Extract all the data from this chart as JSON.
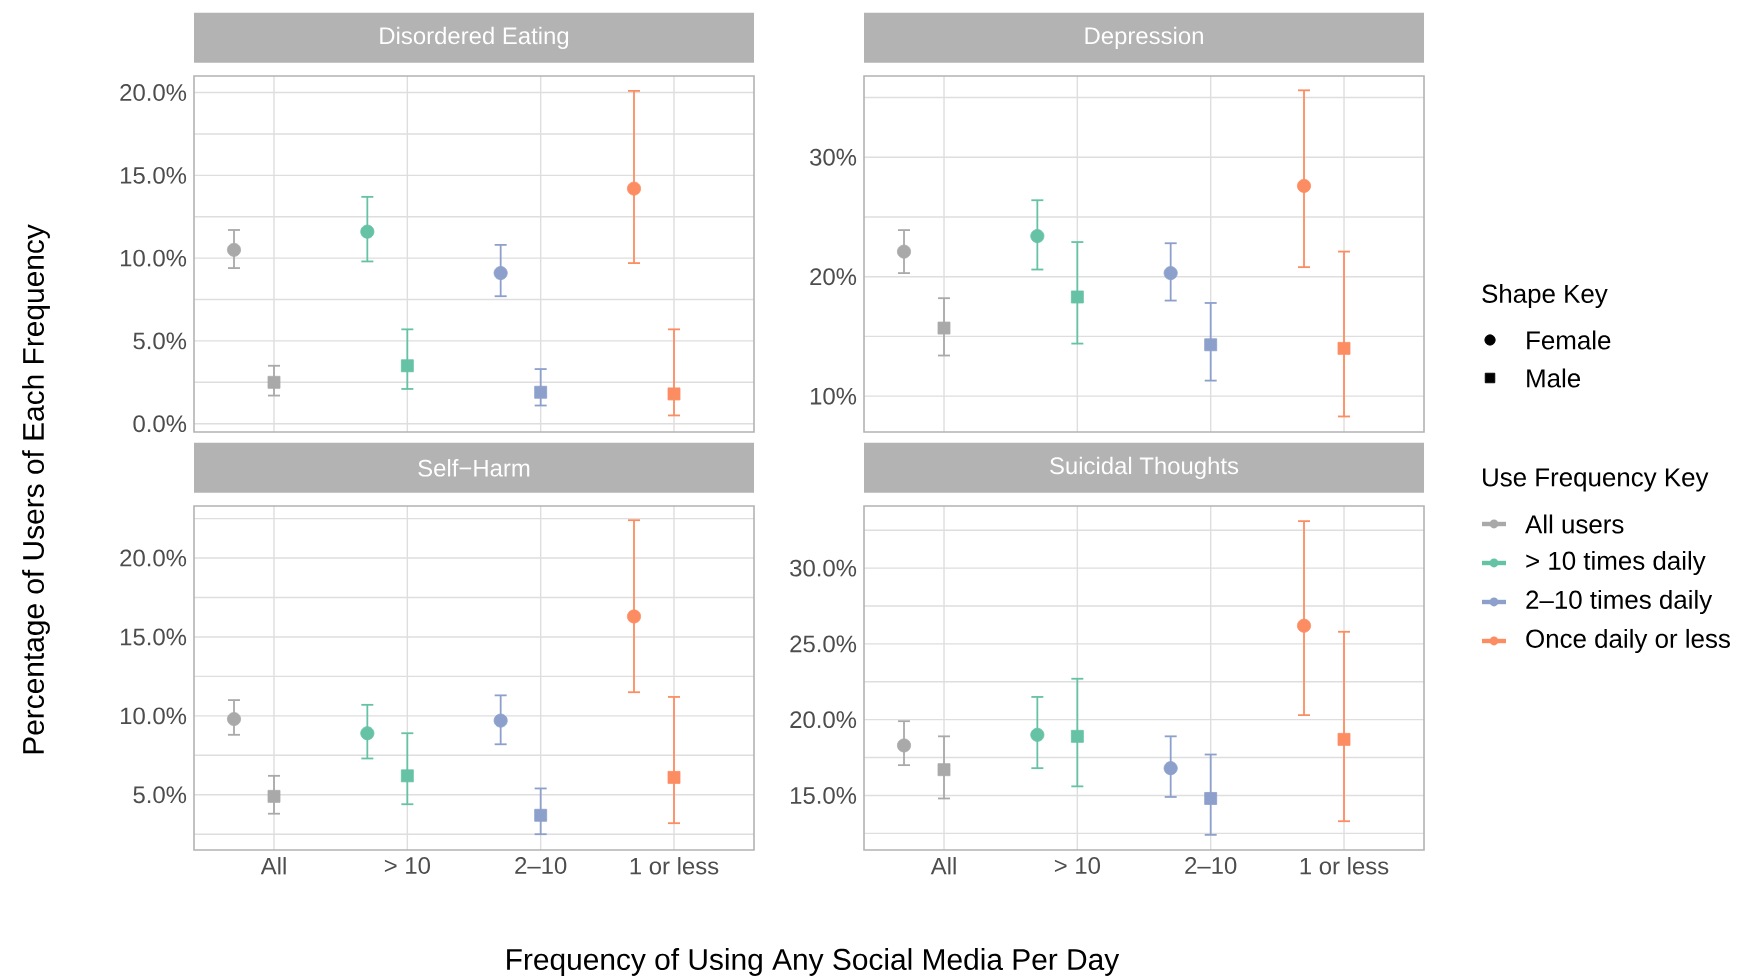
{
  "chart_data": [
    {
      "type": "scatter",
      "title": "Disordered Eating",
      "ylabel": "Percentage of Users of Each Frequency",
      "legend": "right",
      "legend_title": "Shape Key",
      "grid": true,
      "tick_labels": "y",
      "categories": [
        null,
        null,
        null,
        null
      ],
      "ylim": [
        -0.5,
        21.0
      ],
      "yticks": [
        {
          "value": 0,
          "label": "0.0%"
        },
        {
          "value": 2.5,
          "label": null
        },
        {
          "value": 5,
          "label": "5.0%"
        },
        {
          "value": 7.5,
          "label": null
        },
        {
          "value": 10,
          "label": "10.0%"
        },
        {
          "value": 12.5,
          "label": null
        },
        {
          "value": 15,
          "label": "15.0%"
        },
        {
          "value": 17.5,
          "label": null
        },
        {
          "value": 20,
          "label": "20.0%"
        }
      ],
      "series": [
        {
          "name": "Female",
          "marker": "circle",
          "colors": [
            "#a9a9a9",
            "#66c2a5",
            "#8da0cb",
            "#fc8d62"
          ],
          "values": [
            10.5,
            11.6,
            9.1,
            14.2
          ],
          "errors": [
            [
              9.4,
              11.7
            ],
            [
              9.8,
              13.7
            ],
            [
              7.7,
              10.8
            ],
            [
              9.7,
              20.1
            ]
          ]
        },
        {
          "name": "Male",
          "marker": "square",
          "colors": [
            "#a9a9a9",
            "#66c2a5",
            "#8da0cb",
            "#fc8d62"
          ],
          "values": [
            2.5,
            3.5,
            1.9,
            1.8
          ],
          "errors": [
            [
              1.7,
              3.5
            ],
            [
              2.1,
              5.7
            ],
            [
              1.1,
              3.3
            ],
            [
              0.5,
              5.7
            ]
          ]
        }
      ]
    },
    {
      "type": "scatter",
      "title": "Depression",
      "grid": true,
      "tick_labels": "y",
      "categories": [
        null,
        null,
        null,
        null
      ],
      "ylim": [
        7.0,
        36.8
      ],
      "yticks": [
        {
          "value": 10,
          "label": "10%"
        },
        {
          "value": 15,
          "label": null
        },
        {
          "value": 20,
          "label": "20%"
        },
        {
          "value": 25,
          "label": null
        },
        {
          "value": 30,
          "label": "30%"
        },
        {
          "value": 35,
          "label": null
        }
      ],
      "series": [
        {
          "marker": "circle",
          "colors": [
            "#a9a9a9",
            "#66c2a5",
            "#8da0cb",
            "#fc8d62"
          ],
          "values": [
            22.1,
            23.4,
            20.3,
            27.6
          ],
          "errors": [
            [
              20.3,
              23.9
            ],
            [
              20.6,
              26.4
            ],
            [
              18.0,
              22.8
            ],
            [
              20.8,
              35.6
            ]
          ]
        },
        {
          "marker": "square",
          "colors": [
            "#a9a9a9",
            "#66c2a5",
            "#8da0cb",
            "#fc8d62"
          ],
          "values": [
            15.7,
            18.3,
            14.3,
            14.0
          ],
          "errors": [
            [
              13.4,
              18.2
            ],
            [
              14.4,
              22.9
            ],
            [
              11.3,
              17.8
            ],
            [
              8.3,
              22.1
            ]
          ]
        }
      ]
    },
    {
      "type": "scatter",
      "title": "Self−Harm",
      "xlabel": "Frequency of Using Any Social Media Per Day",
      "grid": true,
      "categories": [
        "All",
        "> 10",
        "2–10",
        "1 or less"
      ],
      "ylim": [
        1.5,
        23.3
      ],
      "yticks": [
        {
          "value": 2.5,
          "label": null
        },
        {
          "value": 5,
          "label": "5.0%"
        },
        {
          "value": 7.5,
          "label": null
        },
        {
          "value": 10,
          "label": "10.0%"
        },
        {
          "value": 12.5,
          "label": null
        },
        {
          "value": 15,
          "label": "15.0%"
        },
        {
          "value": 17.5,
          "label": null
        },
        {
          "value": 20,
          "label": "20.0%"
        },
        {
          "value": 22.5,
          "label": null
        }
      ],
      "series": [
        {
          "marker": "circle",
          "colors": [
            "#a9a9a9",
            "#66c2a5",
            "#8da0cb",
            "#fc8d62"
          ],
          "values": [
            9.8,
            8.9,
            9.7,
            16.3
          ],
          "errors": [
            [
              8.8,
              11.0
            ],
            [
              7.3,
              10.7
            ],
            [
              8.2,
              11.3
            ],
            [
              11.5,
              22.4
            ]
          ]
        },
        {
          "marker": "square",
          "colors": [
            "#a9a9a9",
            "#66c2a5",
            "#8da0cb",
            "#fc8d62"
          ],
          "values": [
            4.9,
            6.2,
            3.7,
            6.1
          ],
          "errors": [
            [
              3.8,
              6.2
            ],
            [
              4.4,
              8.9
            ],
            [
              2.5,
              5.4
            ],
            [
              3.2,
              11.2
            ]
          ]
        }
      ]
    },
    {
      "type": "scatter",
      "title": "Suicidal Thoughts",
      "grid": true,
      "categories": [
        "All",
        "> 10",
        "2–10",
        "1 or less"
      ],
      "ylim": [
        11.4,
        34.1
      ],
      "yticks": [
        {
          "value": 12.5,
          "label": null
        },
        {
          "value": 15,
          "label": "15.0%"
        },
        {
          "value": 17.5,
          "label": null
        },
        {
          "value": 20,
          "label": "20.0%"
        },
        {
          "value": 22.5,
          "label": null
        },
        {
          "value": 25,
          "label": "25.0%"
        },
        {
          "value": 27.5,
          "label": null
        },
        {
          "value": 30,
          "label": "30.0%"
        },
        {
          "value": 32.5,
          "label": null
        }
      ],
      "series": [
        {
          "marker": "circle",
          "colors": [
            "#a9a9a9",
            "#66c2a5",
            "#8da0cb",
            "#fc8d62"
          ],
          "values": [
            18.3,
            19.0,
            16.8,
            26.2
          ],
          "errors": [
            [
              17.0,
              19.9
            ],
            [
              16.8,
              21.5
            ],
            [
              14.9,
              18.9
            ],
            [
              20.3,
              33.1
            ]
          ]
        },
        {
          "marker": "square",
          "colors": [
            "#a9a9a9",
            "#66c2a5",
            "#8da0cb",
            "#fc8d62"
          ],
          "values": [
            16.7,
            18.9,
            14.8,
            18.7
          ],
          "errors": [
            [
              14.8,
              18.9
            ],
            [
              15.6,
              22.7
            ],
            [
              12.4,
              17.7
            ],
            [
              13.3,
              25.8
            ]
          ]
        }
      ]
    },
    {
      "type": "other",
      "title": "Use Frequency Key",
      "categories": [
        "All users",
        "> 10 times daily",
        "2–10 times daily",
        "Once daily or less"
      ],
      "colors": [
        "#a9a9a9",
        "#66c2a5",
        "#8da0cb",
        "#fc8d62"
      ]
    }
  ]
}
